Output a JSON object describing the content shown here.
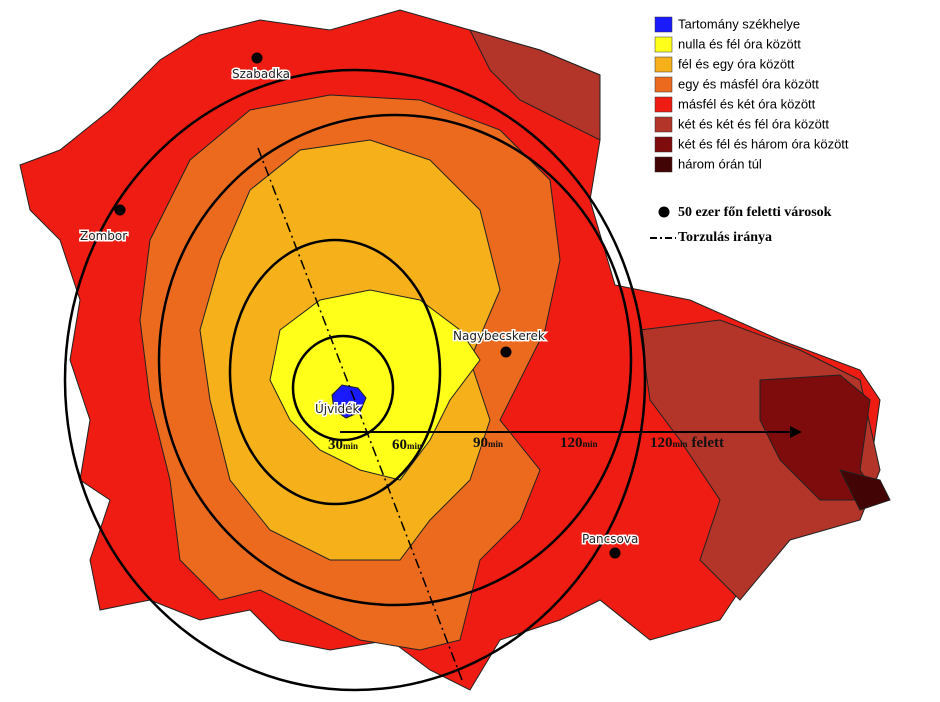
{
  "legend": {
    "items": [
      {
        "label": "Tartomány székhelye",
        "color": "#1a1aff"
      },
      {
        "label": "nulla és fél óra között",
        "color": "#ffff1a"
      },
      {
        "label": "fél és egy óra között",
        "color": "#f5b01a"
      },
      {
        "label": "egy és másfél óra között",
        "color": "#ec6a1e"
      },
      {
        "label": "másfél és két óra között",
        "color": "#ee1c12"
      },
      {
        "label": "két és két és fél óra között",
        "color": "#b3352a"
      },
      {
        "label": "két és fél és három óra között",
        "color": "#7e0c0c"
      },
      {
        "label": "három órán túl",
        "color": "#420404"
      }
    ],
    "symbols": [
      {
        "label": "50 ezer főn feletti városok"
      },
      {
        "label": "Torzulás iránya"
      }
    ]
  },
  "cities": [
    {
      "name": "Szabadka"
    },
    {
      "name": "Zombor"
    },
    {
      "name": "Nagybecskerek"
    },
    {
      "name": "Újvidék"
    },
    {
      "name": "Pancsova"
    }
  ],
  "rings": [
    {
      "number": "30",
      "unit": "min"
    },
    {
      "number": "60",
      "unit": "min"
    },
    {
      "number": "90",
      "unit": "min"
    },
    {
      "number": "120",
      "unit": "min"
    },
    {
      "number": "120",
      "unit": "min",
      "suffix": "felett"
    }
  ]
}
